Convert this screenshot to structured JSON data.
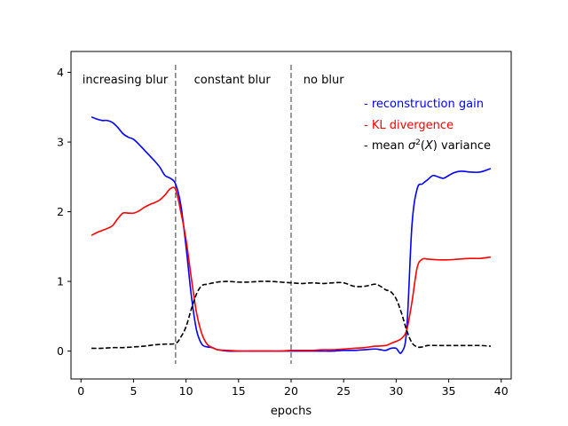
{
  "chart_data": {
    "type": "line",
    "title": "",
    "xlabel": "epochs",
    "ylabel": "",
    "xlim": [
      -0.95,
      40.95
    ],
    "ylim": [
      -0.4,
      4.3
    ],
    "xticks": [
      0,
      5,
      10,
      15,
      20,
      25,
      30,
      35,
      40
    ],
    "yticks": [
      0,
      1,
      2,
      3,
      4
    ],
    "grid": false,
    "legend_position": "top-right",
    "vlines": [
      {
        "x": 9,
        "color": "#808080"
      },
      {
        "x": 20,
        "color": "#808080"
      }
    ],
    "annotations": [
      {
        "text": "increasing blur",
        "x": 4.2,
        "y": 3.9
      },
      {
        "text": "constant blur",
        "x": 14.4,
        "y": 3.9
      },
      {
        "text": "no blur",
        "x": 23.1,
        "y": 3.9
      }
    ],
    "legend": [
      {
        "prefix": "- ",
        "text": "reconstruction gain",
        "color": "#0000ff"
      },
      {
        "prefix": "- ",
        "text": "KL divergence",
        "color": "#ff0000"
      },
      {
        "prefix": "- mean ",
        "sigma": "σ",
        "sup": "2",
        "paren": "(",
        "X": "X",
        "paren_close": ")",
        "suffix": " variance",
        "color": "#000000"
      }
    ],
    "series": [
      {
        "name": "reconstruction gain",
        "color": "#0000ff",
        "dash": false,
        "x": [
          1,
          1.5,
          2,
          2.5,
          3,
          3.5,
          4,
          4.5,
          5,
          5.5,
          6,
          6.5,
          7,
          7.5,
          8,
          8.5,
          9,
          9.5,
          10,
          10.5,
          11,
          11.5,
          12,
          12.5,
          13,
          14,
          15,
          16,
          17,
          18,
          19,
          20,
          21,
          22,
          23,
          24,
          25,
          26,
          27,
          28,
          28.5,
          29,
          29.5,
          30,
          30.5,
          31,
          31.5,
          32,
          32.5,
          33,
          33.5,
          34,
          34.5,
          35,
          35.5,
          36,
          36.5,
          37,
          38,
          39
        ],
        "y": [
          3.36,
          3.33,
          3.31,
          3.31,
          3.28,
          3.21,
          3.12,
          3.07,
          3.04,
          2.97,
          2.89,
          2.81,
          2.73,
          2.64,
          2.52,
          2.48,
          2.4,
          2.1,
          1.5,
          0.8,
          0.3,
          0.1,
          0.06,
          0.05,
          0.02,
          0.0,
          0.0,
          0.0,
          0.0,
          0.0,
          0.0,
          0.0,
          0.0,
          0.0,
          0.0,
          0.0,
          0.01,
          0.01,
          0.02,
          0.03,
          0.02,
          0.01,
          0.04,
          0.04,
          -0.02,
          0.3,
          1.8,
          2.33,
          2.4,
          2.46,
          2.52,
          2.5,
          2.48,
          2.52,
          2.56,
          2.58,
          2.58,
          2.57,
          2.57,
          2.62
        ]
      },
      {
        "name": "KL divergence",
        "color": "#ff0000",
        "dash": false,
        "x": [
          1,
          1.5,
          2,
          2.5,
          3,
          3.5,
          4,
          4.5,
          5,
          5.5,
          6,
          6.5,
          7,
          7.5,
          8,
          8.5,
          9,
          9.5,
          10,
          10.5,
          11,
          11.5,
          12,
          12.5,
          13,
          14,
          15,
          16,
          17,
          18,
          19,
          20,
          21,
          22,
          23,
          24,
          25,
          26,
          27,
          28,
          29,
          29.5,
          30,
          30.5,
          31,
          31.5,
          32,
          32.5,
          33,
          34,
          35,
          36,
          37,
          38,
          39
        ],
        "y": [
          1.66,
          1.7,
          1.73,
          1.76,
          1.8,
          1.9,
          1.98,
          1.98,
          1.98,
          2.01,
          2.06,
          2.1,
          2.13,
          2.17,
          2.24,
          2.33,
          2.32,
          2.0,
          1.6,
          1.05,
          0.55,
          0.25,
          0.1,
          0.05,
          0.02,
          0.01,
          0.0,
          0.0,
          0.0,
          0.0,
          0.0,
          0.01,
          0.01,
          0.01,
          0.02,
          0.02,
          0.03,
          0.04,
          0.05,
          0.07,
          0.08,
          0.11,
          0.14,
          0.18,
          0.3,
          0.7,
          1.2,
          1.32,
          1.32,
          1.31,
          1.31,
          1.32,
          1.33,
          1.33,
          1.35
        ]
      },
      {
        "name": "mean σ²(X) variance",
        "color": "#000000",
        "dash": true,
        "x": [
          1,
          2,
          3,
          4,
          5,
          6,
          7,
          8,
          9,
          9.5,
          10,
          10.5,
          11,
          11.5,
          12,
          13,
          14,
          15,
          16,
          17,
          18,
          19,
          20,
          21,
          22,
          23,
          24,
          25,
          26,
          27,
          28,
          28.5,
          29,
          29.5,
          30,
          30.5,
          31,
          31.5,
          32,
          32.5,
          33,
          34,
          35,
          36,
          37,
          38,
          39
        ],
        "y": [
          0.04,
          0.04,
          0.05,
          0.05,
          0.06,
          0.07,
          0.09,
          0.1,
          0.11,
          0.2,
          0.35,
          0.6,
          0.82,
          0.94,
          0.96,
          0.99,
          1.0,
          0.99,
          0.99,
          1.0,
          1.0,
          0.99,
          0.98,
          0.97,
          0.98,
          0.97,
          0.98,
          0.98,
          0.93,
          0.93,
          0.96,
          0.93,
          0.88,
          0.85,
          0.75,
          0.55,
          0.3,
          0.12,
          0.06,
          0.06,
          0.08,
          0.08,
          0.08,
          0.08,
          0.08,
          0.08,
          0.07
        ]
      }
    ]
  }
}
